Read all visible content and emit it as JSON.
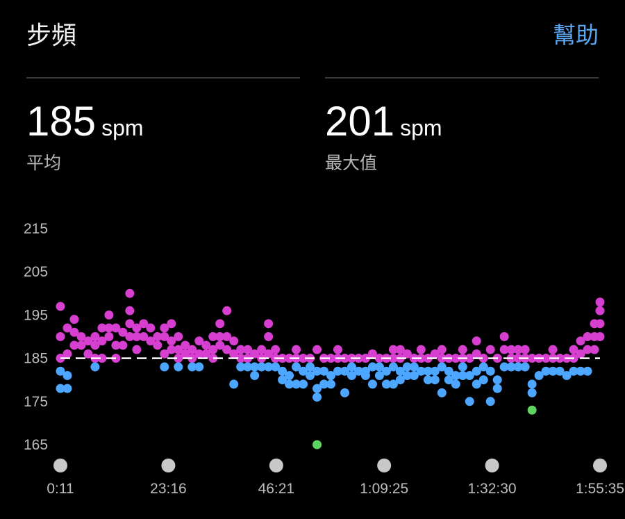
{
  "header": {
    "title": "步頻",
    "help_label": "幫助"
  },
  "stats": [
    {
      "value": "185",
      "unit": "spm",
      "label": "平均"
    },
    {
      "value": "201",
      "unit": "spm",
      "label": "最大值"
    }
  ],
  "colors": {
    "accent": "#5aa6f0",
    "above": "#d63fcf",
    "middle": "#4da6ff",
    "below": "#5fd35f",
    "average_line": "#ffffff"
  },
  "chart_data": {
    "type": "scatter",
    "ylim": [
      165,
      215
    ],
    "yticks": [
      "215",
      "205",
      "195",
      "185",
      "175",
      "165"
    ],
    "xticks": [
      "0:11",
      "23:16",
      "46:21",
      "1:09:25",
      "1:32:30",
      "1:55:35"
    ],
    "average_line": 185,
    "series": [
      {
        "key": "m",
        "color": "#d63fcf"
      },
      {
        "key": "b",
        "color": "#4da6ff"
      },
      {
        "key": "g",
        "color": "#5fd35f"
      }
    ],
    "samples": [
      {
        "t": "0:11",
        "m": [
          197,
          190,
          185
        ],
        "b": [
          182,
          178
        ]
      },
      {
        "t": "1:40",
        "m": [
          186,
          192
        ],
        "b": [
          181,
          178
        ]
      },
      {
        "t": "3:09",
        "m": [
          194,
          191,
          188
        ]
      },
      {
        "t": "4:38",
        "m": [
          190,
          188
        ]
      },
      {
        "t": "6:07",
        "m": [
          189,
          186
        ]
      },
      {
        "t": "7:36",
        "m": [
          190,
          188,
          185
        ],
        "b": [
          183
        ]
      },
      {
        "t": "9:05",
        "m": [
          192,
          189,
          185
        ]
      },
      {
        "t": "10:34",
        "m": [
          195,
          192,
          190
        ]
      },
      {
        "t": "12:03",
        "m": [
          192,
          188,
          185
        ]
      },
      {
        "t": "13:32",
        "m": [
          191,
          188
        ]
      },
      {
        "t": "15:01",
        "m": [
          200,
          196,
          193,
          190
        ]
      },
      {
        "t": "16:30",
        "m": [
          192,
          190,
          187
        ]
      },
      {
        "t": "17:59",
        "m": [
          193,
          190
        ]
      },
      {
        "t": "19:28",
        "m": [
          192,
          189
        ]
      },
      {
        "t": "20:57",
        "m": [
          190,
          188
        ]
      },
      {
        "t": "22:26",
        "m": [
          192,
          190,
          186
        ],
        "b": [
          183
        ]
      },
      {
        "t": "23:55",
        "m": [
          193,
          189,
          187
        ]
      },
      {
        "t": "25:24",
        "m": [
          190,
          187,
          185
        ],
        "b": [
          183
        ]
      },
      {
        "t": "26:53",
        "m": [
          188,
          186
        ]
      },
      {
        "t": "28:22",
        "m": [
          187,
          185
        ],
        "b": [
          183
        ]
      },
      {
        "t": "29:51",
        "m": [
          189,
          186
        ],
        "b": [
          183
        ]
      },
      {
        "t": "31:20",
        "m": [
          188,
          186
        ]
      },
      {
        "t": "32:49",
        "m": [
          190,
          187,
          185
        ]
      },
      {
        "t": "34:18",
        "m": [
          193,
          190,
          188
        ]
      },
      {
        "t": "35:47",
        "m": [
          196,
          190,
          187
        ]
      },
      {
        "t": "37:16",
        "m": [
          189,
          186
        ],
        "b": [
          179
        ]
      },
      {
        "t": "38:45",
        "m": [
          187,
          185
        ],
        "b": [
          183
        ]
      },
      {
        "t": "40:14",
        "m": [
          187,
          185
        ],
        "b": [
          183
        ]
      },
      {
        "t": "41:43",
        "m": [
          186
        ],
        "b": [
          183,
          181
        ]
      },
      {
        "t": "43:12",
        "m": [
          187,
          185
        ],
        "b": [
          183
        ]
      },
      {
        "t": "44:41",
        "m": [
          193,
          190,
          186
        ],
        "b": [
          183
        ]
      },
      {
        "t": "46:10",
        "m": [
          187,
          185
        ],
        "b": [
          183
        ]
      },
      {
        "t": "47:39",
        "m": [
          185
        ],
        "b": [
          182,
          180
        ]
      },
      {
        "t": "49:08",
        "m": [
          185
        ],
        "b": [
          181,
          179
        ]
      },
      {
        "t": "50:37",
        "m": [
          187,
          185
        ],
        "b": [
          183,
          179
        ]
      },
      {
        "t": "52:06",
        "m": [
          185
        ],
        "b": [
          182,
          179
        ]
      },
      {
        "t": "53:35",
        "m": [
          185
        ],
        "b": [
          183,
          181
        ]
      },
      {
        "t": "55:04",
        "m": [
          187
        ],
        "b": [
          182,
          178,
          176
        ],
        "g": [
          165
        ]
      },
      {
        "t": "56:33",
        "m": [
          185
        ],
        "b": [
          182,
          179
        ]
      },
      {
        "t": "58:02",
        "m": [
          185
        ],
        "b": [
          181,
          179
        ]
      },
      {
        "t": "59:31",
        "m": [
          187,
          185
        ],
        "b": [
          182
        ]
      },
      {
        "t": "1:01:00",
        "m": [
          185
        ],
        "b": [
          182,
          177
        ]
      },
      {
        "t": "1:02:29",
        "m": [
          185
        ],
        "b": [
          183,
          181
        ]
      },
      {
        "t": "1:03:58",
        "m": [
          185
        ],
        "b": [
          182
        ]
      },
      {
        "t": "1:05:27",
        "m": [
          185
        ],
        "b": [
          182,
          181
        ]
      },
      {
        "t": "1:06:56",
        "m": [
          186
        ],
        "b": [
          183,
          179
        ]
      },
      {
        "t": "1:08:25",
        "m": [
          185
        ],
        "b": [
          183,
          181
        ]
      },
      {
        "t": "1:09:54",
        "m": [
          185
        ],
        "b": [
          182,
          179
        ]
      },
      {
        "t": "1:11:23",
        "m": [
          187,
          185
        ],
        "b": [
          183,
          179
        ]
      },
      {
        "t": "1:12:52",
        "m": [
          187,
          185
        ],
        "b": [
          182,
          180
        ]
      },
      {
        "t": "1:14:21",
        "m": [
          186
        ],
        "b": [
          183,
          181
        ]
      },
      {
        "t": "1:15:50",
        "m": [
          185
        ],
        "b": [
          183,
          181
        ]
      },
      {
        "t": "1:17:19",
        "m": [
          187,
          185
        ],
        "b": [
          182
        ]
      },
      {
        "t": "1:18:48",
        "m": [
          185
        ],
        "b": [
          182,
          180
        ]
      },
      {
        "t": "1:20:17",
        "m": [
          186
        ],
        "b": [
          182,
          180
        ]
      },
      {
        "t": "1:21:46",
        "m": [
          187,
          185
        ],
        "b": [
          183,
          177
        ]
      },
      {
        "t": "1:23:15",
        "m": [
          185
        ],
        "b": [
          182,
          180
        ]
      },
      {
        "t": "1:24:44",
        "m": [
          185
        ],
        "b": [
          181,
          179
        ]
      },
      {
        "t": "1:26:13",
        "m": [
          187,
          185
        ],
        "b": [
          183,
          181
        ]
      },
      {
        "t": "1:27:42",
        "m": [
          185
        ],
        "b": [
          181,
          175
        ]
      },
      {
        "t": "1:29:11",
        "m": [
          189,
          186
        ],
        "b": [
          182,
          179
        ]
      },
      {
        "t": "1:30:40",
        "m": [
          185
        ],
        "b": [
          183,
          180
        ]
      },
      {
        "t": "1:32:09",
        "m": [
          187
        ],
        "b": [
          182,
          175
        ]
      },
      {
        "t": "1:33:38",
        "m": [
          185
        ],
        "b": [
          180,
          178
        ]
      },
      {
        "t": "1:35:07",
        "m": [
          190,
          187
        ],
        "b": [
          183
        ]
      },
      {
        "t": "1:36:36",
        "m": [
          187,
          185
        ],
        "b": [
          183
        ]
      },
      {
        "t": "1:38:05",
        "m": [
          187,
          185
        ],
        "b": [
          183
        ]
      },
      {
        "t": "1:39:34",
        "m": [
          187,
          185
        ],
        "b": [
          183
        ]
      },
      {
        "t": "1:41:03",
        "m": [
          185
        ],
        "b": [
          179,
          177
        ],
        "g": [
          173
        ]
      },
      {
        "t": "1:42:32",
        "m": [
          185
        ],
        "b": [
          181
        ]
      },
      {
        "t": "1:44:01",
        "m": [
          185
        ],
        "b": [
          182
        ]
      },
      {
        "t": "1:45:30",
        "m": [
          187,
          185
        ],
        "b": [
          182
        ]
      },
      {
        "t": "1:46:59",
        "m": [
          185
        ],
        "b": [
          182
        ]
      },
      {
        "t": "1:48:28",
        "m": [
          185
        ],
        "b": [
          181
        ]
      },
      {
        "t": "1:49:57",
        "m": [
          187,
          185
        ],
        "b": [
          182
        ]
      },
      {
        "t": "1:51:26",
        "m": [
          189,
          186
        ],
        "b": [
          182
        ]
      },
      {
        "t": "1:52:55",
        "m": [
          190,
          187
        ],
        "b": [
          182
        ]
      },
      {
        "t": "1:54:24",
        "m": [
          193,
          190,
          187
        ]
      },
      {
        "t": "1:55:35",
        "m": [
          198,
          196,
          193,
          190
        ]
      }
    ]
  }
}
